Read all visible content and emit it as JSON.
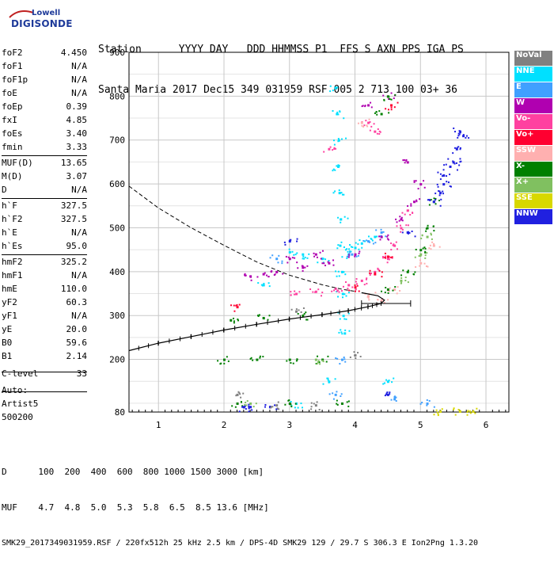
{
  "logo": {
    "line1": "Lowell",
    "line2": "DIGISONDE"
  },
  "header": {
    "labels": [
      "Station",
      "YYYY",
      "DAY",
      "DDD",
      "HHMMSS",
      "P1",
      "FFS",
      "S",
      "AXN",
      "PPS",
      "IGA",
      "PS"
    ],
    "values": [
      "Santa Maria",
      "2017",
      "Dec15",
      "349",
      "031959",
      "RSF",
      "005",
      "2",
      "713",
      "100",
      "03+",
      "36"
    ]
  },
  "params": [
    {
      "k": "foF2",
      "v": "4.450"
    },
    {
      "k": "foF1",
      "v": "N/A"
    },
    {
      "k": "foF1p",
      "v": "N/A"
    },
    {
      "k": "foE",
      "v": "N/A"
    },
    {
      "k": "foEp",
      "v": "0.39"
    },
    {
      "k": "fxI",
      "v": "4.85"
    },
    {
      "k": "foEs",
      "v": "3.40"
    },
    {
      "k": "fmin",
      "v": "3.33"
    },
    {
      "k": "MUF(D)",
      "v": "13.65"
    },
    {
      "k": "M(D)",
      "v": "3.07"
    },
    {
      "k": "D",
      "v": "N/A"
    },
    {
      "k": "h`F",
      "v": "327.5"
    },
    {
      "k": "h`F2",
      "v": "327.5"
    },
    {
      "k": "h`E",
      "v": "N/A"
    },
    {
      "k": "h`Es",
      "v": "95.0"
    },
    {
      "k": "hmF2",
      "v": "325.2"
    },
    {
      "k": "hmF1",
      "v": "N/A"
    },
    {
      "k": "hmE",
      "v": "110.0"
    },
    {
      "k": "yF2",
      "v": "60.3"
    },
    {
      "k": "yF1",
      "v": "N/A"
    },
    {
      "k": "yE",
      "v": "20.0"
    },
    {
      "k": "B0",
      "v": "59.6"
    },
    {
      "k": "B1",
      "v": "2.14"
    },
    {
      "k": "C-level",
      "v": "33"
    }
  ],
  "extra": [
    "Auto:",
    "Artist5",
    "500200"
  ],
  "legend": [
    {
      "name": "NoVal",
      "color": "#808080"
    },
    {
      "name": "NNE",
      "color": "#00e0ff"
    },
    {
      "name": "E",
      "color": "#40a0ff"
    },
    {
      "name": "W",
      "color": "#b000b0"
    },
    {
      "name": "Vo-",
      "color": "#ff40a0"
    },
    {
      "name": "Vo+",
      "color": "#ff0030"
    },
    {
      "name": "SSW",
      "color": "#ffb0b0"
    },
    {
      "name": "X-",
      "color": "#008000"
    },
    {
      "name": "X+",
      "color": "#80c060"
    },
    {
      "name": "SSE",
      "color": "#d8d800"
    },
    {
      "name": "NNW",
      "color": "#2020e0"
    }
  ],
  "footer": {
    "line1": "D      100  200  400  600  800 1000 1500 3000 [km]",
    "line2": "MUF    4.7  4.8  5.0  5.3  5.8  6.5  8.5 13.6 [MHz]",
    "line3": "SMK29_2017349031959.RSF / 220fx512h 25 kHz 2.5 km / DPS-4D SMK29 129 / 29.7 S 306.3 E Ion2Png 1.3.20"
  },
  "chart_data": {
    "type": "scatter",
    "xlim": [
      0.55,
      6.35
    ],
    "ylim": [
      80,
      900
    ],
    "x_ticks": [
      1,
      2,
      3,
      4,
      5,
      6
    ],
    "y_ticks": [
      80,
      200,
      300,
      400,
      500,
      600,
      700,
      800,
      900
    ],
    "grid": true,
    "legend_position": "right",
    "series": [
      {
        "name": "NNE",
        "color": "#00e0ff",
        "points": [
          [
            3.7,
            820
          ],
          [
            3.72,
            760
          ],
          [
            3.75,
            700
          ],
          [
            3.74,
            640
          ],
          [
            3.76,
            580
          ],
          [
            3.78,
            520
          ],
          [
            3.77,
            460
          ],
          [
            3.8,
            400
          ],
          [
            3.81,
            350
          ],
          [
            3.82,
            300
          ],
          [
            3.84,
            260
          ],
          [
            3.9,
            440
          ],
          [
            4.0,
            455
          ],
          [
            3.5,
            430
          ],
          [
            3.2,
            440
          ],
          [
            3.0,
            445
          ],
          [
            4.1,
            465
          ],
          [
            4.3,
            480
          ],
          [
            2.6,
            370
          ],
          [
            3.6,
            150
          ],
          [
            4.5,
            150
          ],
          [
            3.1,
            100
          ]
        ]
      },
      {
        "name": "E",
        "color": "#40a0ff",
        "points": [
          [
            3.95,
            440
          ],
          [
            4.2,
            470
          ],
          [
            4.4,
            490
          ],
          [
            3.7,
            120
          ],
          [
            4.6,
            110
          ],
          [
            5.1,
            100
          ],
          [
            2.8,
            430
          ],
          [
            3.8,
            200
          ]
        ]
      },
      {
        "name": "W",
        "color": "#b000b0",
        "points": [
          [
            2.4,
            390
          ],
          [
            2.8,
            400
          ],
          [
            3.2,
            410
          ],
          [
            3.6,
            420
          ],
          [
            4.0,
            440
          ],
          [
            4.4,
            480
          ],
          [
            4.7,
            520
          ],
          [
            4.9,
            560
          ],
          [
            5.0,
            600
          ],
          [
            4.2,
            780
          ],
          [
            4.5,
            800
          ],
          [
            3.0,
            430
          ],
          [
            3.4,
            440
          ],
          [
            2.6,
            395
          ],
          [
            4.8,
            650
          ]
        ]
      },
      {
        "name": "Vo-",
        "color": "#ff40a0",
        "points": [
          [
            3.1,
            350
          ],
          [
            3.4,
            355
          ],
          [
            3.7,
            362
          ],
          [
            3.9,
            370
          ],
          [
            4.1,
            380
          ],
          [
            4.3,
            400
          ],
          [
            4.5,
            430
          ],
          [
            4.6,
            460
          ],
          [
            4.7,
            500
          ],
          [
            4.8,
            540
          ],
          [
            4.2,
            740
          ],
          [
            4.3,
            720
          ],
          [
            3.6,
            680
          ]
        ]
      },
      {
        "name": "Vo+",
        "color": "#ff0030",
        "points": [
          [
            4.0,
            365
          ],
          [
            4.3,
            395
          ],
          [
            4.5,
            435
          ],
          [
            2.2,
            320
          ],
          [
            4.55,
            780
          ]
        ]
      },
      {
        "name": "SSW",
        "color": "#ffb0b0",
        "points": [
          [
            4.4,
            335
          ],
          [
            4.2,
            345
          ],
          [
            4.6,
            360
          ],
          [
            5.0,
            420
          ],
          [
            5.2,
            460
          ],
          [
            4.1,
            740
          ]
        ]
      },
      {
        "name": "X-",
        "color": "#008000",
        "points": [
          [
            2.0,
            200
          ],
          [
            2.5,
            200
          ],
          [
            3.0,
            200
          ],
          [
            3.5,
            200
          ],
          [
            2.2,
            100
          ],
          [
            3.0,
            100
          ],
          [
            3.8,
            100
          ],
          [
            4.5,
            360
          ],
          [
            4.8,
            400
          ],
          [
            5.0,
            450
          ],
          [
            5.1,
            500
          ],
          [
            5.2,
            560
          ],
          [
            4.4,
            760
          ],
          [
            4.5,
            800
          ],
          [
            2.1,
            290
          ],
          [
            2.6,
            295
          ],
          [
            3.2,
            300
          ]
        ]
      },
      {
        "name": "X+",
        "color": "#80c060",
        "points": [
          [
            4.7,
            380
          ],
          [
            5.0,
            440
          ],
          [
            5.1,
            480
          ],
          [
            3.4,
            200
          ],
          [
            2.4,
            100
          ]
        ]
      },
      {
        "name": "SSE",
        "color": "#d8d800",
        "points": [
          [
            5.3,
            82
          ],
          [
            5.6,
            82
          ],
          [
            5.8,
            82
          ]
        ]
      },
      {
        "name": "NNW",
        "color": "#2020e0",
        "points": [
          [
            5.2,
            560
          ],
          [
            5.35,
            600
          ],
          [
            5.45,
            640
          ],
          [
            5.55,
            680
          ],
          [
            5.65,
            710
          ],
          [
            5.6,
            720
          ],
          [
            5.5,
            650
          ],
          [
            5.35,
            620
          ],
          [
            5.3,
            580
          ],
          [
            2.3,
            92
          ],
          [
            2.4,
            92
          ],
          [
            2.7,
            92
          ],
          [
            4.5,
            120
          ],
          [
            4.8,
            490
          ],
          [
            3.0,
            470
          ]
        ]
      },
      {
        "name": "NoVal",
        "color": "#808080",
        "points": [
          [
            2.2,
            120
          ],
          [
            3.4,
            96
          ],
          [
            2.8,
            96
          ],
          [
            4.0,
            210
          ],
          [
            3.1,
            310
          ]
        ]
      }
    ],
    "profile_solid": [
      [
        0.55,
        220
      ],
      [
        1.0,
        237
      ],
      [
        1.5,
        252
      ],
      [
        2.0,
        267
      ],
      [
        2.5,
        280
      ],
      [
        3.0,
        292
      ],
      [
        3.5,
        302
      ],
      [
        3.9,
        311
      ],
      [
        4.2,
        320
      ],
      [
        4.4,
        327.5
      ],
      [
        4.45,
        335
      ],
      [
        4.35,
        345
      ],
      [
        4.1,
        352
      ]
    ],
    "profile_dashed": [
      [
        0.55,
        595
      ],
      [
        1.0,
        545
      ],
      [
        1.5,
        500
      ],
      [
        2.0,
        460
      ],
      [
        2.5,
        422
      ],
      [
        3.0,
        392
      ],
      [
        3.5,
        370
      ],
      [
        3.8,
        360
      ],
      [
        4.0,
        355
      ]
    ],
    "error_bar": {
      "x_low": 4.1,
      "x_high": 4.85,
      "y": 327.5
    }
  }
}
